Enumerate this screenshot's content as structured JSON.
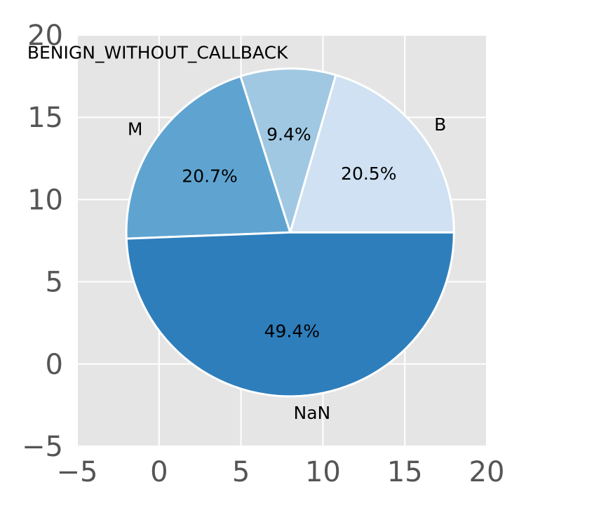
{
  "chart_data": {
    "type": "pie",
    "title": "",
    "xlabel": "",
    "ylabel": "",
    "xlim": [
      -5,
      20
    ],
    "ylim": [
      -5,
      20
    ],
    "x_ticks": [
      "−5",
      "0",
      "5",
      "10",
      "15",
      "20"
    ],
    "y_ticks": [
      "−5",
      "0",
      "5",
      "10",
      "15",
      "20"
    ],
    "grid": true,
    "center": [
      8,
      8
    ],
    "radius": 10,
    "slices": [
      {
        "label": "B",
        "value": 20.5,
        "pct_label": "20.5%",
        "color": "#cfe1f2"
      },
      {
        "label": "BENIGN_WITHOUT_CALLBACK",
        "value": 9.4,
        "pct_label": "9.4%",
        "color": "#a0c8e2"
      },
      {
        "label": "M",
        "value": 20.7,
        "pct_label": "20.7%",
        "color": "#5fa4d1"
      },
      {
        "label": "NaN",
        "value": 49.4,
        "pct_label": "49.4%",
        "color": "#2e7ebc"
      }
    ],
    "colors": {
      "background": "#e5e5e5",
      "grid": "#ffffff",
      "edge": "#ffffff",
      "tick_text": "#555555"
    }
  }
}
